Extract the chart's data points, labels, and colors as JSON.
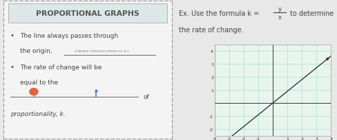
{
  "left_panel": {
    "title": "PROPORTIONAL GRAPHS",
    "bullet1_line1": "The line always passes through",
    "bullet1_line2": "the origin,",
    "bullet1_annotation": "K PASSES THROUGH ORIGIN Y/X IS 0",
    "bullet2_line1": "The rate of change will be",
    "bullet2_line2": "equal to the",
    "bullet2_line3": "of",
    "bullet2_line4": "proportionality, k.",
    "bg_color": "#f4f4f4",
    "border_color": "#999999",
    "title_bg": "#dce8e8",
    "title_color": "#555555",
    "text_color": "#444444"
  },
  "right_panel": {
    "bg_color": "#ffffff",
    "grid_color": "#aaddcc",
    "axis_color": "#333333",
    "line_color": "#222222",
    "xmin": -4,
    "xmax": 4,
    "ymin": -2.5,
    "ymax": 4.5,
    "slope": 0.9,
    "text_color": "#444444"
  },
  "fig_bg": "#e8e8e8"
}
